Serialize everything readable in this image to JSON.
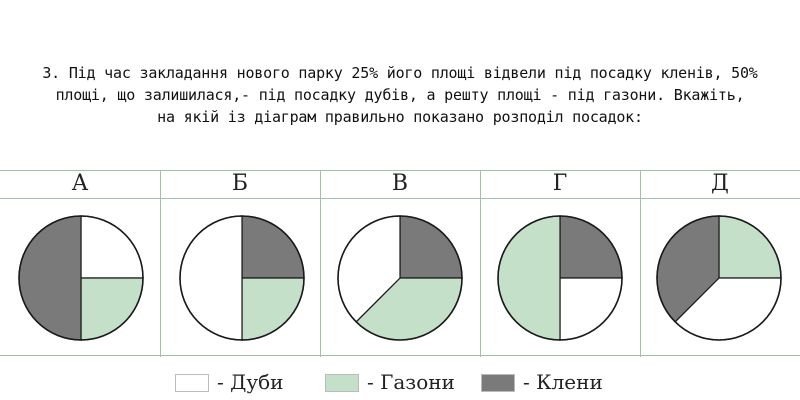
{
  "question": {
    "line1": "3. Під час закладання нового парку 25% його площі відвели під посадку кленів, 50%",
    "line2": "площі, що залишилася,- під посадку дубів, а решту площі - під газони. Вкажіть,",
    "line3": "на якій із діаграм правильно показано розподіл посадок:"
  },
  "colors": {
    "Дуби": "#ffffff",
    "Газони": "#c5e0c9",
    "Клени": "#7a7a7a"
  },
  "legend": [
    {
      "key": "Дуби",
      "label": "- Дуби",
      "color": "#ffffff"
    },
    {
      "key": "Газони",
      "label": "- Газони",
      "color": "#c5e0c9"
    },
    {
      "key": "Клени",
      "label": "- Клени",
      "color": "#7a7a7a"
    }
  ],
  "chart_data": [
    {
      "type": "pie",
      "title": "А",
      "slices": [
        {
          "label": "Дуби",
          "value": 25
        },
        {
          "label": "Газони",
          "value": 25
        },
        {
          "label": "Клени",
          "value": 50
        }
      ]
    },
    {
      "type": "pie",
      "title": "Б",
      "slices": [
        {
          "label": "Клени",
          "value": 25
        },
        {
          "label": "Газони",
          "value": 25
        },
        {
          "label": "Дуби",
          "value": 50
        }
      ]
    },
    {
      "type": "pie",
      "title": "В",
      "slices": [
        {
          "label": "Клени",
          "value": 25
        },
        {
          "label": "Газони",
          "value": 37.5
        },
        {
          "label": "Дуби",
          "value": 37.5
        }
      ]
    },
    {
      "type": "pie",
      "title": "Г",
      "slices": [
        {
          "label": "Клени",
          "value": 25
        },
        {
          "label": "Дуби",
          "value": 25
        },
        {
          "label": "Газони",
          "value": 50
        }
      ]
    },
    {
      "type": "pie",
      "title": "Д",
      "slices": [
        {
          "label": "Газони",
          "value": 25
        },
        {
          "label": "Дуби",
          "value": 37.5
        },
        {
          "label": "Клени",
          "value": 37.5
        }
      ]
    }
  ]
}
